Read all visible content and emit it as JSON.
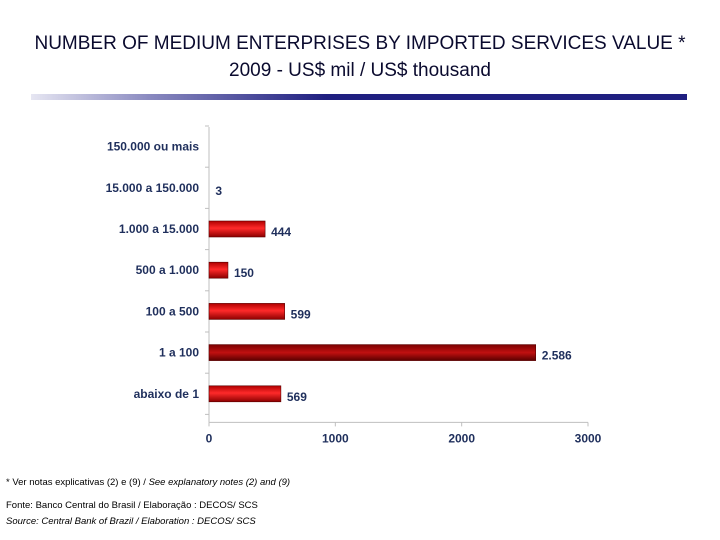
{
  "title": {
    "line1": "NUMBER OF MEDIUM ENTERPRISES BY IMPORTED SERVICES VALUE *",
    "line2": "2009 - US$ mil / US$ thousand"
  },
  "chart_data": {
    "type": "bar",
    "orientation": "horizontal",
    "title": "NUMBER OF MEDIUM ENTERPRISES BY IMPORTED SERVICES VALUE * 2009 - US$ mil / US$ thousand",
    "categories": [
      "150.000 ou mais",
      "15.000 a 150.000",
      "1.000 a 15.000",
      "500 a 1.000",
      "100 a 500",
      "1 a 100",
      "abaixo de 1"
    ],
    "values": [
      0,
      3,
      444,
      150,
      599,
      2586,
      569
    ],
    "value_labels": [
      "",
      "3",
      "444",
      "150",
      "599",
      "2.586",
      "569"
    ],
    "xlim": [
      0,
      3000
    ],
    "xticks": [
      0,
      1000,
      2000,
      3000
    ],
    "xtick_labels": [
      "0",
      "1000",
      "2000",
      "3000"
    ],
    "xlabel": "",
    "ylabel": "",
    "grid": false,
    "colors": {
      "bar_light": "#ff2020",
      "bar_dark": "#8c0000",
      "label": "#1f2f5c",
      "axis": "#bfbfbf"
    }
  },
  "footer": {
    "note_pt": "* Ver notas explicativas (2) e (9) / ",
    "note_en": "See explanatory notes (2) and (9)",
    "fonte": "Fonte: Banco Central do Brasil /  Elaboração : DECOS/ SCS",
    "source": "Source: Central Bank of Brazil / Elaboration : DECOS/ SCS"
  }
}
